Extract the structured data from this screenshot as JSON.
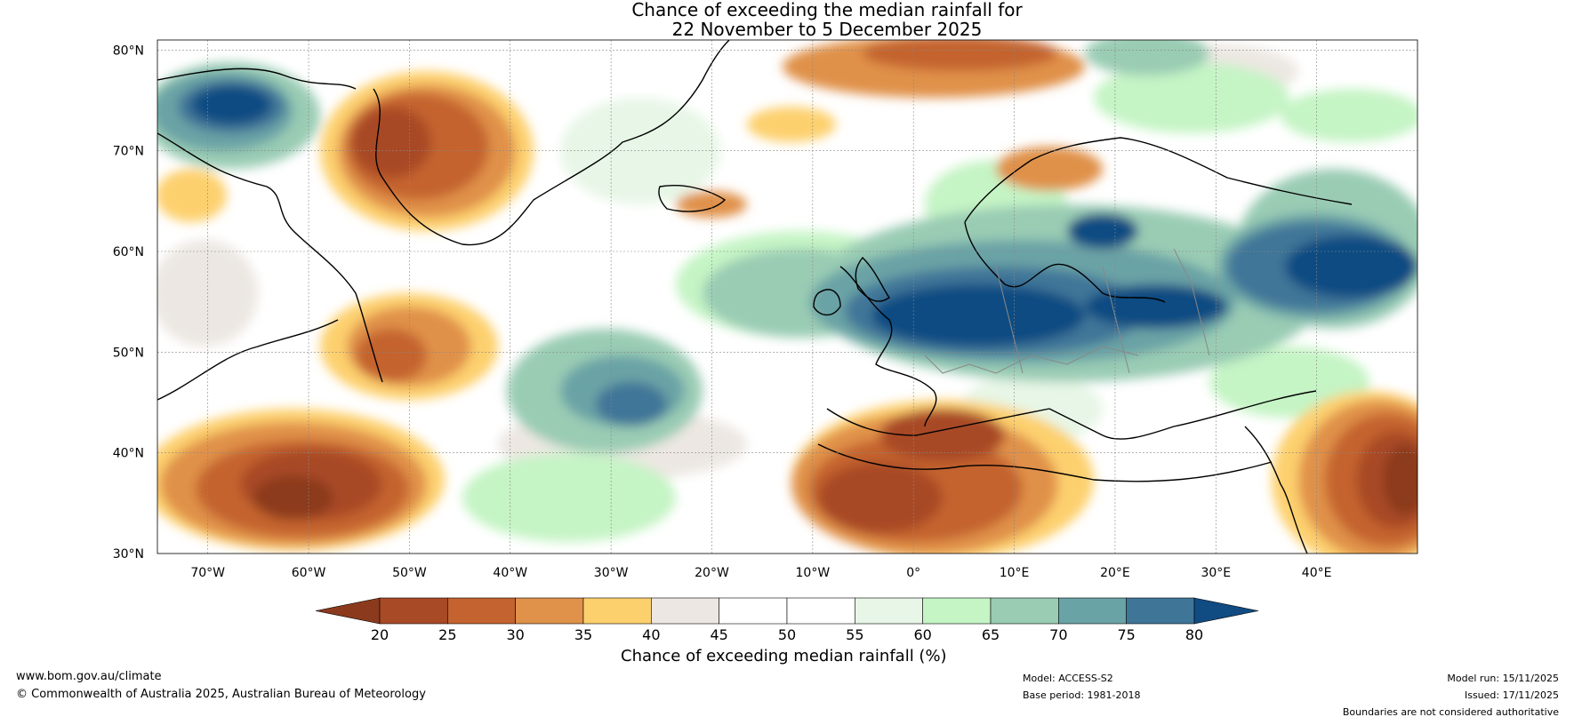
{
  "title": {
    "line1": "Chance of exceeding the median rainfall for",
    "line2": "22 November to 5 December 2025"
  },
  "map": {
    "lat_labels": [
      "80°N",
      "70°N",
      "60°N",
      "50°N",
      "40°N",
      "30°N"
    ],
    "lon_labels": [
      "70°W",
      "60°W",
      "50°W",
      "40°W",
      "30°W",
      "20°W",
      "10°W",
      "0°",
      "10°E",
      "20°E",
      "30°E",
      "40°E"
    ]
  },
  "colorbar": {
    "tick_labels": [
      "20",
      "25",
      "30",
      "35",
      "40",
      "45",
      "50",
      "55",
      "60",
      "65",
      "70",
      "75",
      "80"
    ],
    "title": "Chance of exceeding median rainfall (%)",
    "colors": [
      "#8c3a1e",
      "#a84a26",
      "#c4632f",
      "#e0914a",
      "#fdd06e",
      "#ece7e2",
      "#ffffff",
      "#ffffff",
      "#e7f6e6",
      "#c5f4c5",
      "#9accb4",
      "#6aa3a6",
      "#3f7698",
      "#104b82"
    ]
  },
  "footer": {
    "website": "www.bom.gov.au/climate",
    "copyright": "© Commonwealth of Australia 2025, Australian Bureau of Meteorology",
    "model": "Model: ACCESS-S2",
    "base_period": "Base period: 1981-2018",
    "model_run": "Model run: 15/11/2025",
    "issued": "Issued: 17/11/2025",
    "disclaimer": "Boundaries are not considered authoritative"
  }
}
